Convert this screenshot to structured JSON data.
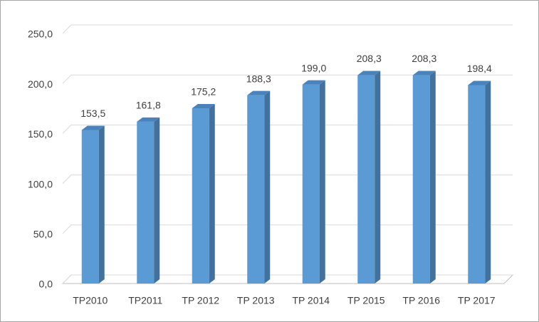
{
  "chart_data": {
    "type": "bar3d",
    "categories": [
      "TP2010",
      "TP2011",
      "TP 2012",
      "TP 2013",
      "TP 2014",
      "TP 2015",
      "TP 2016",
      "TP 2017"
    ],
    "values": [
      153.5,
      161.8,
      175.2,
      188.3,
      199.0,
      208.3,
      208.3,
      198.4
    ],
    "value_labels": [
      "153,5",
      "161,8",
      "175,2",
      "188,3",
      "199,0",
      "208,3",
      "208,3",
      "198,4"
    ],
    "color": "#5b9bd5",
    "ylim": [
      0,
      250
    ],
    "yticks": [
      {
        "value": 0,
        "label": "0,0"
      },
      {
        "value": 50,
        "label": "50,0"
      },
      {
        "value": 100,
        "label": "100,0"
      },
      {
        "value": 150,
        "label": "150,0"
      },
      {
        "value": 200,
        "label": "200,0"
      },
      {
        "value": 250,
        "label": "250,0"
      }
    ],
    "grid": true
  }
}
